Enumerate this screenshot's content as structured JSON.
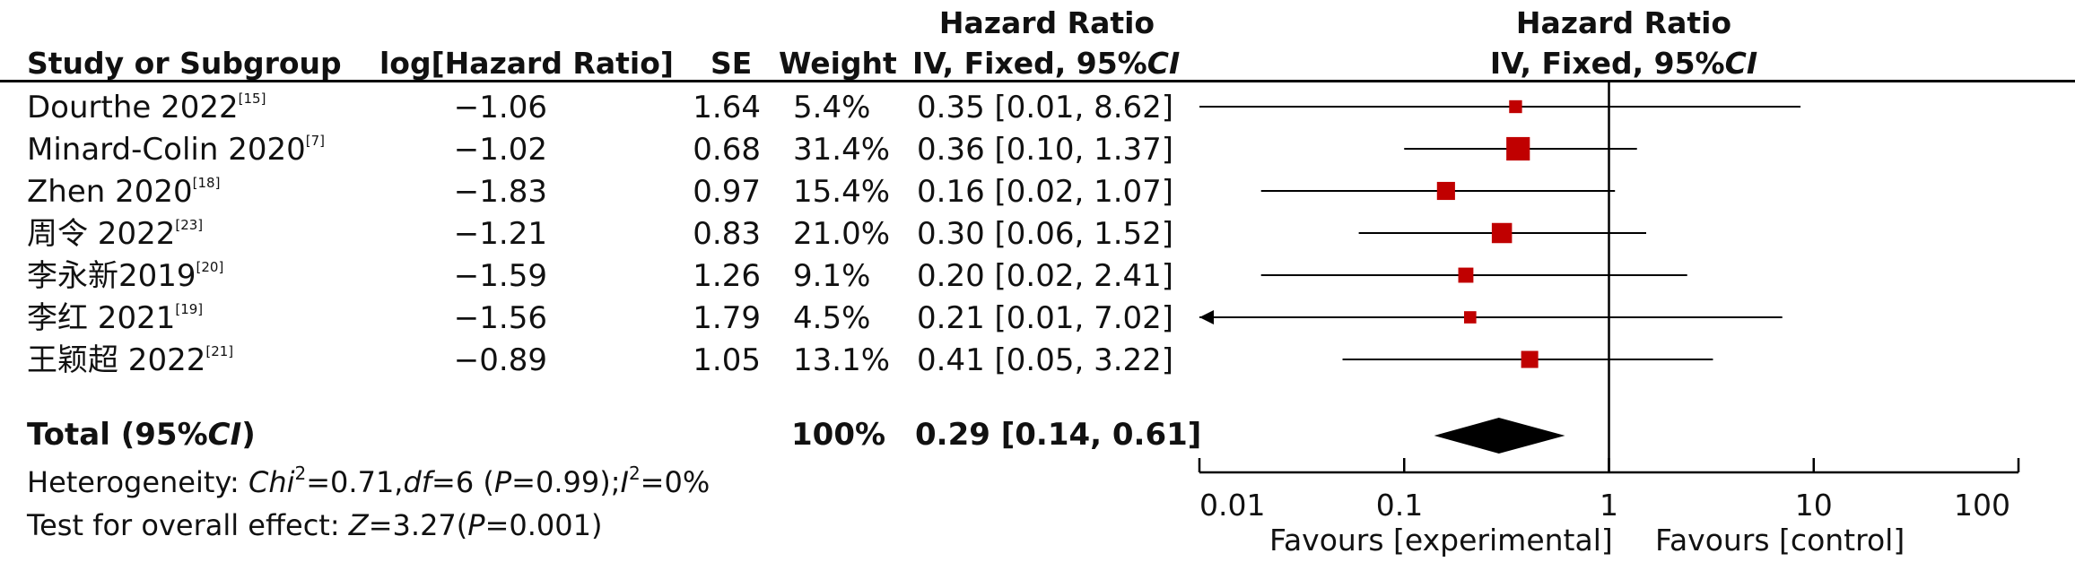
{
  "headers": {
    "study": "Study or Subgroup",
    "loghr": "log[Hazard Ratio]",
    "se": "SE",
    "weight": "Weight",
    "hr_top": "Hazard Ratio",
    "hr_sub": "IV, Fixed, 95%",
    "ci": "CI",
    "plot_top": "Hazard Ratio",
    "plot_sub": "IV, Fixed, 95%",
    "plot_ci": "CI"
  },
  "rows": [
    {
      "study": "Dourthe 2022",
      "ref": "[15]",
      "loghr": "−1.06",
      "se": "1.64",
      "weight": "5.4%",
      "hr": "0.35 [0.01, 8.62]"
    },
    {
      "study": "Minard-Colin 2020",
      "ref": "[7]",
      "loghr": "−1.02",
      "se": "0.68",
      "weight": "31.4%",
      "hr": "0.36 [0.10, 1.37]"
    },
    {
      "study": "Zhen 2020",
      "ref": "[18]",
      "loghr": "−1.83",
      "se": "0.97",
      "weight": "15.4%",
      "hr": "0.16 [0.02, 1.07]"
    },
    {
      "study": "周令 2022",
      "ref": "[23]",
      "loghr": "−1.21",
      "se": "0.83",
      "weight": "21.0%",
      "hr": "0.30 [0.06, 1.52]"
    },
    {
      "study": "李永新2019",
      "ref": "[20]",
      "loghr": "−1.59",
      "se": "1.26",
      "weight": "9.1%",
      "hr": "0.20 [0.02, 2.41]"
    },
    {
      "study": "李红 2021",
      "ref": "[19]",
      "loghr": "−1.56",
      "se": "1.79",
      "weight": "4.5%",
      "hr": "0.21 [0.01, 7.02]"
    },
    {
      "study": "王颖超 2022",
      "ref": "[21]",
      "loghr": "−0.89",
      "se": "1.05",
      "weight": "13.1%",
      "hr": "0.41 [0.05, 3.22]"
    }
  ],
  "total": {
    "label_a": "Total (95%",
    "label_ci": "CI",
    "label_b": ")",
    "weight": "100%",
    "hr": "0.29 [0.14, 0.61]"
  },
  "heterogeneity": {
    "prefix": "Heterogeneity: ",
    "chi": "Chi",
    "sup2": "2",
    "chi_val": "=0.71,",
    "df": "df",
    "df_val": "=6 (",
    "p": "P",
    "p_val": "=0.99);",
    "i": "I",
    "i_sup": "2",
    "i_val": "=0%"
  },
  "overall": {
    "prefix": "Test for overall effect: ",
    "z": "Z",
    "z_val": "=3.27(",
    "p": "P",
    "p_val": "=0.001)"
  },
  "axis": {
    "ticks": [
      "0.01",
      "0.1",
      "1",
      "10",
      "100"
    ],
    "favours_left": "Favours [experimental]",
    "favours_right": "Favours [control]"
  },
  "chart_data": {
    "type": "forest",
    "scale": "log",
    "xlim": [
      0.01,
      100
    ],
    "reference_line": 1,
    "studies": [
      {
        "name": "Dourthe 2022",
        "hr": 0.35,
        "lower": 0.01,
        "upper": 8.62,
        "weight": 5.4
      },
      {
        "name": "Minard-Colin 2020",
        "hr": 0.36,
        "lower": 0.1,
        "upper": 1.37,
        "weight": 31.4
      },
      {
        "name": "Zhen 2020",
        "hr": 0.16,
        "lower": 0.02,
        "upper": 1.07,
        "weight": 15.4
      },
      {
        "name": "周令 2022",
        "hr": 0.3,
        "lower": 0.06,
        "upper": 1.52,
        "weight": 21.0
      },
      {
        "name": "李永新2019",
        "hr": 0.2,
        "lower": 0.02,
        "upper": 2.41,
        "weight": 9.1
      },
      {
        "name": "李红 2021",
        "hr": 0.21,
        "lower": 0.01,
        "upper": 7.02,
        "weight": 4.5,
        "arrow_left": true
      },
      {
        "name": "王颖超 2022",
        "hr": 0.41,
        "lower": 0.05,
        "upper": 3.22,
        "weight": 13.1
      }
    ],
    "pooled": {
      "hr": 0.29,
      "lower": 0.14,
      "upper": 0.61
    },
    "colors": {
      "marker": "#c00000",
      "line": "#000000",
      "diamond": "#000000"
    }
  }
}
